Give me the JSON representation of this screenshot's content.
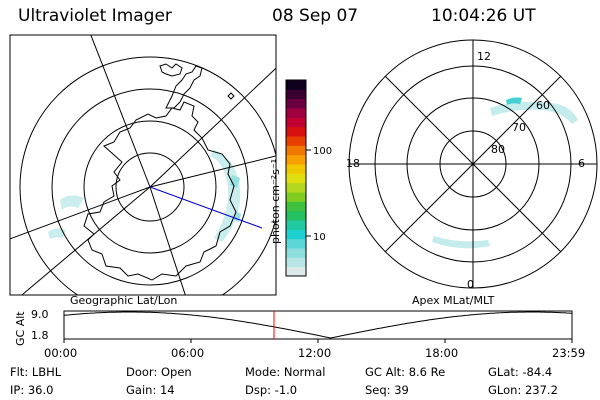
{
  "header": {
    "instrument": "Ultraviolet Imager",
    "date": "08 Sep 07",
    "time": "10:04:26 UT"
  },
  "left_panel": {
    "caption": "Geographic Lat/Lon"
  },
  "right_panel": {
    "caption": "Apex MLat/MLT",
    "mlt_labels": [
      "12",
      "18",
      "6",
      "0"
    ],
    "lat_labels": [
      "60",
      "70",
      "80"
    ]
  },
  "colorbar": {
    "unit_label": "photon cm⁻²s⁻¹",
    "ticks": [
      "100",
      "10"
    ],
    "colors": [
      "#dde8e8",
      "#b8e6e6",
      "#8edede",
      "#5cd6d6",
      "#1fd0d0",
      "#22c8a0",
      "#25c060",
      "#40c040",
      "#80cc20",
      "#b4d820",
      "#e0e010",
      "#f0c800",
      "#f8a000",
      "#f07800",
      "#e84000",
      "#d81010",
      "#c00030",
      "#a00040",
      "#6a0040",
      "#3a0030",
      "#100020"
    ]
  },
  "timeline": {
    "y_axis_label": "GC Alt",
    "y_ticks": [
      "9.0",
      "1.8"
    ],
    "x_ticks": [
      "00:00",
      "06:00",
      "12:00",
      "18:00",
      "23:59"
    ],
    "marker_color": "#ff0000"
  },
  "info": {
    "flt": "Flt: LBHL",
    "ip": "IP: 36.0",
    "door": "Door: Open",
    "gain": "Gain: 14",
    "mode": "Mode: Normal",
    "dsp": "Dsp:   -1.0",
    "gc_alt": "GC Alt: 8.6 Re",
    "seq": "Seq: 39",
    "glat": "GLat: -84.4",
    "glon": "GLon: 237.2"
  }
}
